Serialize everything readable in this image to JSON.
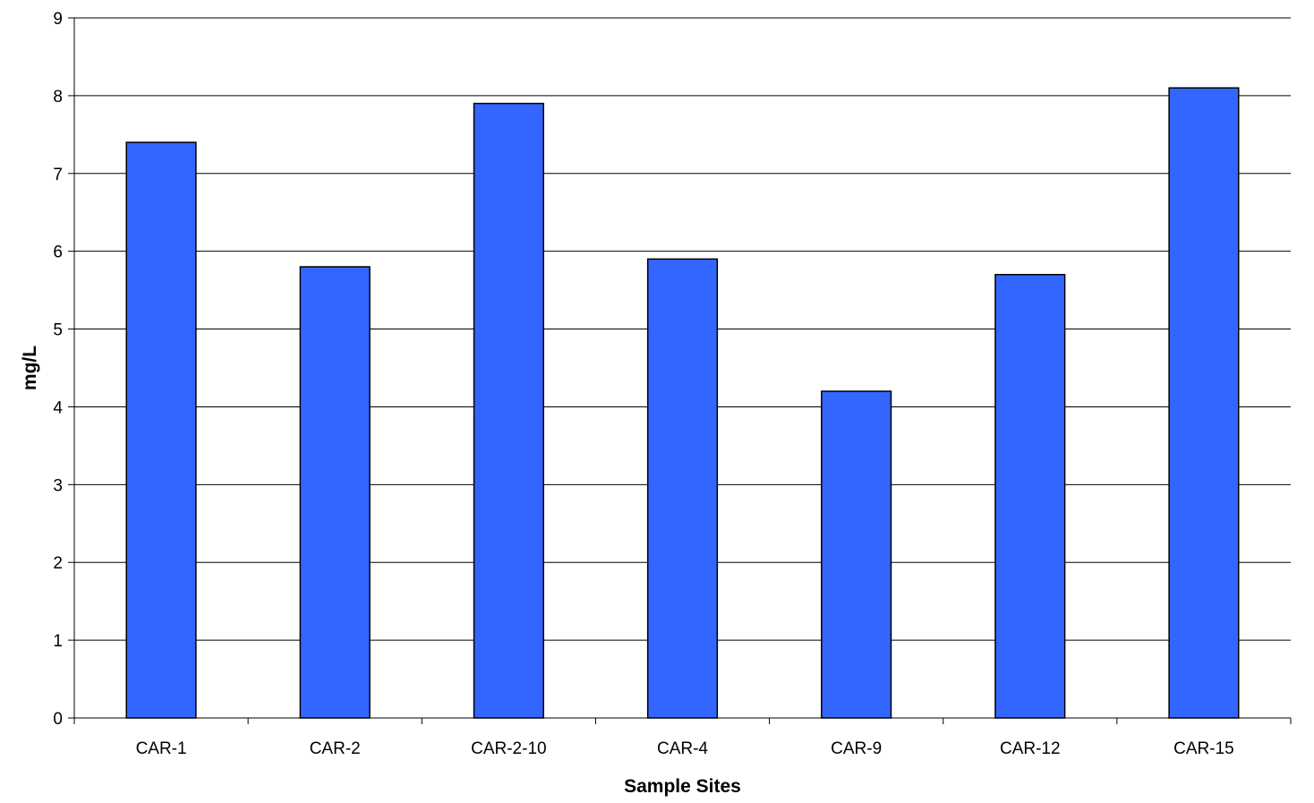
{
  "chart_data": {
    "type": "bar",
    "title": "",
    "xlabel": "Sample Sites",
    "ylabel": "mg/L",
    "categories": [
      "CAR-1",
      "CAR-2",
      "CAR-2-10",
      "CAR-4",
      "CAR-9",
      "CAR-12",
      "CAR-15"
    ],
    "series": [
      {
        "values": [
          7.4,
          5.8,
          7.9,
          5.9,
          4.2,
          5.7,
          8.1
        ],
        "color": "#3366ff"
      }
    ],
    "ylim": [
      0,
      9
    ],
    "yticks": [
      "0",
      "1",
      "2",
      "3",
      "4",
      "5",
      "6",
      "7",
      "8",
      "9"
    ],
    "grid": "horizontal",
    "legend": "none"
  }
}
